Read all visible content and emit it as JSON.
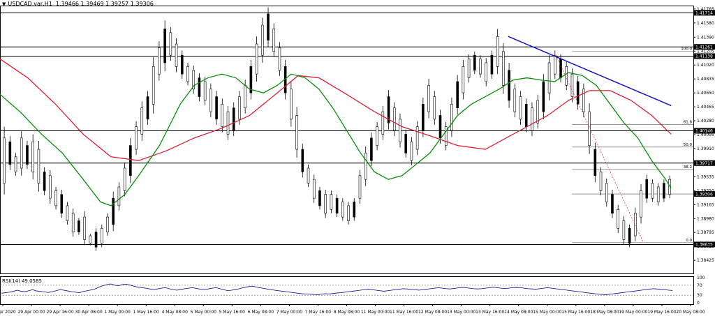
{
  "header": {
    "symbol": "USDCAD,var,H1",
    "ohlc": "1.39466 1.39469 1.39257 1.39306",
    "menu_icon": "triangle-down-icon"
  },
  "rsi": {
    "label": "RSI(14) 49.0585",
    "levels": [
      "100",
      "70",
      "30",
      "0"
    ],
    "values": [
      38,
      40,
      42,
      45,
      50,
      46,
      44,
      48,
      52,
      47,
      45,
      43,
      41,
      44,
      48,
      52,
      50,
      47,
      44,
      42,
      40,
      45,
      48,
      51,
      55,
      62,
      68,
      72,
      75,
      70,
      68,
      72,
      74,
      70,
      66,
      62,
      60,
      58,
      55,
      52,
      55,
      58,
      60,
      56,
      52,
      50,
      53,
      56,
      58,
      60,
      57,
      54,
      52,
      55,
      58,
      60,
      56,
      52,
      48,
      50,
      53,
      56,
      60,
      63,
      66,
      64,
      60,
      58,
      55,
      52,
      50,
      48,
      46,
      44,
      42,
      40,
      38,
      36,
      35,
      34,
      33,
      32,
      34,
      36,
      35,
      37,
      39,
      40,
      42,
      44,
      46,
      48,
      50,
      52,
      54,
      52,
      50,
      48,
      46,
      48,
      50,
      52,
      54,
      56,
      55,
      53,
      52,
      50,
      52,
      54,
      56,
      58,
      60,
      58,
      56,
      55,
      57,
      59,
      61,
      60,
      58,
      56,
      55,
      56,
      58,
      60,
      62,
      60,
      58,
      57,
      58,
      60,
      61,
      60,
      58,
      56,
      55,
      54,
      56,
      58,
      60,
      58,
      56,
      54,
      52,
      50,
      48,
      46,
      44,
      42,
      40,
      38,
      36,
      34,
      33,
      32,
      34,
      36,
      38,
      40,
      42,
      44,
      46,
      48,
      50,
      52,
      54,
      56,
      55,
      53,
      52,
      50,
      49
    ],
    "line_color": "#00008b"
  },
  "chart_data": {
    "type": "candlestick",
    "ylim": [
      1.3825,
      1.4181
    ],
    "price_ticks": [
      "1.41765",
      "1.41580",
      "1.41390",
      "1.41205",
      "1.41020",
      "1.40835",
      "1.40650",
      "1.40465",
      "1.40280",
      "1.40095",
      "1.39910",
      "1.39725",
      "1.39535",
      "1.39350",
      "1.39165",
      "1.38980",
      "1.38795",
      "1.38610",
      "1.38425"
    ],
    "time_labels": [
      "28 Apr 2020",
      "29 Apr 00:00",
      "29 Apr 16:00",
      "30 Apr 08:00",
      "1 May 00:00",
      "1 May 16:00",
      "4 May 08:00",
      "5 May 00:00",
      "5 May 16:00",
      "6 May 08:00",
      "7 May 00:00",
      "7 May 16:00",
      "8 May 08:00",
      "11 May 00:00",
      "11 May 16:00",
      "12 May 08:00",
      "13 May 00:00",
      "13 May 16:00",
      "14 May 08:00",
      "15 May 00:00",
      "15 May 16:00",
      "18 May 08:00",
      "19 May 00:00",
      "19 May 16:00",
      "20 May 08:00"
    ],
    "levels": [
      {
        "price": 1.41714,
        "label": "1.41714"
      },
      {
        "price": 1.41261,
        "label": "1.41261"
      },
      {
        "price": 1.41138,
        "label": "1.41138"
      },
      {
        "price": 1.40146,
        "label": "1.40146"
      },
      {
        "price": 1.39717,
        "label": "1.39717"
      },
      {
        "price": 1.38635,
        "label": "1.38635"
      }
    ],
    "current_price": {
      "price": 1.39306,
      "label": "1.39306"
    },
    "fibonacci": [
      {
        "level": "100.0",
        "price": 1.41205
      },
      {
        "level": "61.8",
        "price": 1.4023
      },
      {
        "level": "50.0",
        "price": 1.3993
      },
      {
        "level": "38.2",
        "price": 1.3963
      },
      {
        "level": "0.0",
        "price": 1.3866
      }
    ],
    "fib_range_price": 1.39306,
    "trendline": {
      "start": [
        0.733,
        1.414
      ],
      "end": [
        0.968,
        1.4048
      ],
      "color": "#1414c8"
    },
    "fib_diagonal": {
      "start": [
        0.8,
        1.4118
      ],
      "end": [
        0.928,
        1.3866
      ],
      "color": "#e03c3c"
    },
    "ma_fast": {
      "color": "#0a8c0a",
      "points": [
        [
          0.0,
          1.4063
        ],
        [
          0.03,
          1.4039
        ],
        [
          0.06,
          1.401
        ],
        [
          0.09,
          1.3985
        ],
        [
          0.12,
          1.395
        ],
        [
          0.145,
          1.392
        ],
        [
          0.16,
          1.3915
        ],
        [
          0.18,
          1.393
        ],
        [
          0.2,
          1.3955
        ],
        [
          0.23,
          1.3995
        ],
        [
          0.26,
          1.405
        ],
        [
          0.28,
          1.4075
        ],
        [
          0.3,
          1.4085
        ],
        [
          0.32,
          1.409
        ],
        [
          0.34,
          1.4085
        ],
        [
          0.36,
          1.407
        ],
        [
          0.38,
          1.4065
        ],
        [
          0.4,
          1.4075
        ],
        [
          0.42,
          1.409
        ],
        [
          0.44,
          1.4085
        ],
        [
          0.46,
          1.407
        ],
        [
          0.48,
          1.4045
        ],
        [
          0.5,
          1.4015
        ],
        [
          0.52,
          1.3985
        ],
        [
          0.54,
          1.396
        ],
        [
          0.56,
          1.395
        ],
        [
          0.58,
          1.3955
        ],
        [
          0.6,
          1.397
        ],
        [
          0.62,
          1.3985
        ],
        [
          0.64,
          1.401
        ],
        [
          0.66,
          1.4035
        ],
        [
          0.68,
          1.405
        ],
        [
          0.7,
          1.406
        ],
        [
          0.72,
          1.407
        ],
        [
          0.74,
          1.4082
        ],
        [
          0.76,
          1.4085
        ],
        [
          0.78,
          1.4082
        ],
        [
          0.8,
          1.408
        ],
        [
          0.82,
          1.4092
        ],
        [
          0.84,
          1.4088
        ],
        [
          0.86,
          1.4075
        ],
        [
          0.88,
          1.405
        ],
        [
          0.9,
          1.4025
        ],
        [
          0.92,
          1.4005
        ],
        [
          0.94,
          1.3975
        ],
        [
          0.96,
          1.395
        ],
        [
          0.968,
          1.3938
        ]
      ]
    },
    "ma_slow": {
      "color": "#dc1e32",
      "points": [
        [
          0.0,
          1.411
        ],
        [
          0.04,
          1.4085
        ],
        [
          0.08,
          1.405
        ],
        [
          0.12,
          1.401
        ],
        [
          0.16,
          1.398
        ],
        [
          0.2,
          1.3975
        ],
        [
          0.24,
          1.3988
        ],
        [
          0.28,
          1.4005
        ],
        [
          0.32,
          1.4018
        ],
        [
          0.36,
          1.4035
        ],
        [
          0.4,
          1.4065
        ],
        [
          0.43,
          1.4088
        ],
        [
          0.46,
          1.4085
        ],
        [
          0.5,
          1.4063
        ],
        [
          0.54,
          1.404
        ],
        [
          0.58,
          1.402
        ],
        [
          0.62,
          1.4008
        ],
        [
          0.66,
          1.3995
        ],
        [
          0.7,
          1.399
        ],
        [
          0.73,
          1.4005
        ],
        [
          0.76,
          1.402
        ],
        [
          0.79,
          1.4035
        ],
        [
          0.82,
          1.4055
        ],
        [
          0.85,
          1.4068
        ],
        [
          0.88,
          1.4068
        ],
        [
          0.91,
          1.4055
        ],
        [
          0.94,
          1.4035
        ],
        [
          0.968,
          1.401
        ]
      ]
    },
    "candles": [
      [
        1.4005,
        1.3945
      ],
      [
        1.4,
        1.397
      ],
      [
        1.398,
        1.396
      ],
      [
        1.4005,
        1.3965
      ],
      [
        1.3995,
        1.397
      ],
      [
        1.4,
        1.396
      ],
      [
        1.399,
        1.3945
      ],
      [
        1.396,
        1.3935
      ],
      [
        1.3955,
        1.3925
      ],
      [
        1.3935,
        1.3915
      ],
      [
        1.393,
        1.3905
      ],
      [
        1.3915,
        1.3895
      ],
      [
        1.3905,
        1.388
      ],
      [
        1.3895,
        1.388
      ],
      [
        1.39,
        1.387
      ],
      [
        1.3875,
        1.3865
      ],
      [
        1.388,
        1.386
      ],
      [
        1.3885,
        1.3865
      ],
      [
        1.39,
        1.388
      ],
      [
        1.3925,
        1.389
      ],
      [
        1.394,
        1.3915
      ],
      [
        1.3965,
        1.3935
      ],
      [
        1.3995,
        1.3955
      ],
      [
        1.402,
        1.399
      ],
      [
        1.4045,
        1.401
      ],
      [
        1.406,
        1.403
      ],
      [
        1.41,
        1.405
      ],
      [
        1.4125,
        1.409
      ],
      [
        1.415,
        1.4105
      ],
      [
        1.4145,
        1.4115
      ],
      [
        1.413,
        1.41
      ],
      [
        1.4115,
        1.409
      ],
      [
        1.41,
        1.408
      ],
      [
        1.4095,
        1.407
      ],
      [
        1.4085,
        1.406
      ],
      [
        1.408,
        1.4055
      ],
      [
        1.407,
        1.404
      ],
      [
        1.406,
        1.403
      ],
      [
        1.405,
        1.402
      ],
      [
        1.404,
        1.401
      ],
      [
        1.4045,
        1.4015
      ],
      [
        1.406,
        1.403
      ],
      [
        1.4075,
        1.4045
      ],
      [
        1.41,
        1.4065
      ],
      [
        1.413,
        1.409
      ],
      [
        1.4155,
        1.4115
      ],
      [
        1.417,
        1.4135
      ],
      [
        1.415,
        1.412
      ],
      [
        1.4125,
        1.4095
      ],
      [
        1.41,
        1.4065
      ],
      [
        1.407,
        1.403
      ],
      [
        1.4035,
        1.399
      ],
      [
        1.399,
        1.396
      ],
      [
        1.3965,
        1.3945
      ],
      [
        1.395,
        1.3925
      ],
      [
        1.3935,
        1.3915
      ],
      [
        1.393,
        1.3905
      ],
      [
        1.393,
        1.391
      ],
      [
        1.3925,
        1.3905
      ],
      [
        1.392,
        1.39
      ],
      [
        1.3915,
        1.3895
      ],
      [
        1.392,
        1.39
      ],
      [
        1.3955,
        1.3925
      ],
      [
        1.3985,
        1.395
      ],
      [
        1.4005,
        1.3975
      ],
      [
        1.402,
        1.3995
      ],
      [
        1.404,
        1.401
      ],
      [
        1.406,
        1.4025
      ],
      [
        1.4045,
        1.4015
      ],
      [
        1.403,
        1.4
      ],
      [
        1.401,
        1.3985
      ],
      [
        1.4,
        1.3975
      ],
      [
        1.402,
        1.399
      ],
      [
        1.405,
        1.4015
      ],
      [
        1.4075,
        1.404
      ],
      [
        1.406,
        1.403
      ],
      [
        1.4035,
        1.4005
      ],
      [
        1.402,
        1.3995
      ],
      [
        1.405,
        1.4015
      ],
      [
        1.408,
        1.4045
      ],
      [
        1.41,
        1.4065
      ],
      [
        1.411,
        1.4085
      ],
      [
        1.4115,
        1.4095
      ],
      [
        1.411,
        1.409
      ],
      [
        1.4105,
        1.408
      ],
      [
        1.4115,
        1.409
      ],
      [
        1.414,
        1.41
      ],
      [
        1.412,
        1.4075
      ],
      [
        1.4095,
        1.4055
      ],
      [
        1.407,
        1.404
      ],
      [
        1.406,
        1.403
      ],
      [
        1.405,
        1.402
      ],
      [
        1.4045,
        1.4015
      ],
      [
        1.4055,
        1.4025
      ],
      [
        1.408,
        1.404
      ],
      [
        1.4105,
        1.4065
      ],
      [
        1.4115,
        1.409
      ],
      [
        1.411,
        1.4085
      ],
      [
        1.41,
        1.4075
      ],
      [
        1.409,
        1.406
      ],
      [
        1.408,
        1.405
      ],
      [
        1.407,
        1.404
      ],
      [
        1.404,
        1.3995
      ],
      [
        1.399,
        1.3955
      ],
      [
        1.396,
        1.3935
      ],
      [
        1.3945,
        1.392
      ],
      [
        1.393,
        1.3905
      ],
      [
        1.391,
        1.3885
      ],
      [
        1.3895,
        1.387
      ],
      [
        1.3885,
        1.3865
      ],
      [
        1.3905,
        1.3875
      ],
      [
        1.3935,
        1.39
      ],
      [
        1.395,
        1.3925
      ],
      [
        1.3945,
        1.3925
      ],
      [
        1.394,
        1.392
      ],
      [
        1.3945,
        1.3925
      ],
      [
        1.395,
        1.393
      ]
    ]
  }
}
